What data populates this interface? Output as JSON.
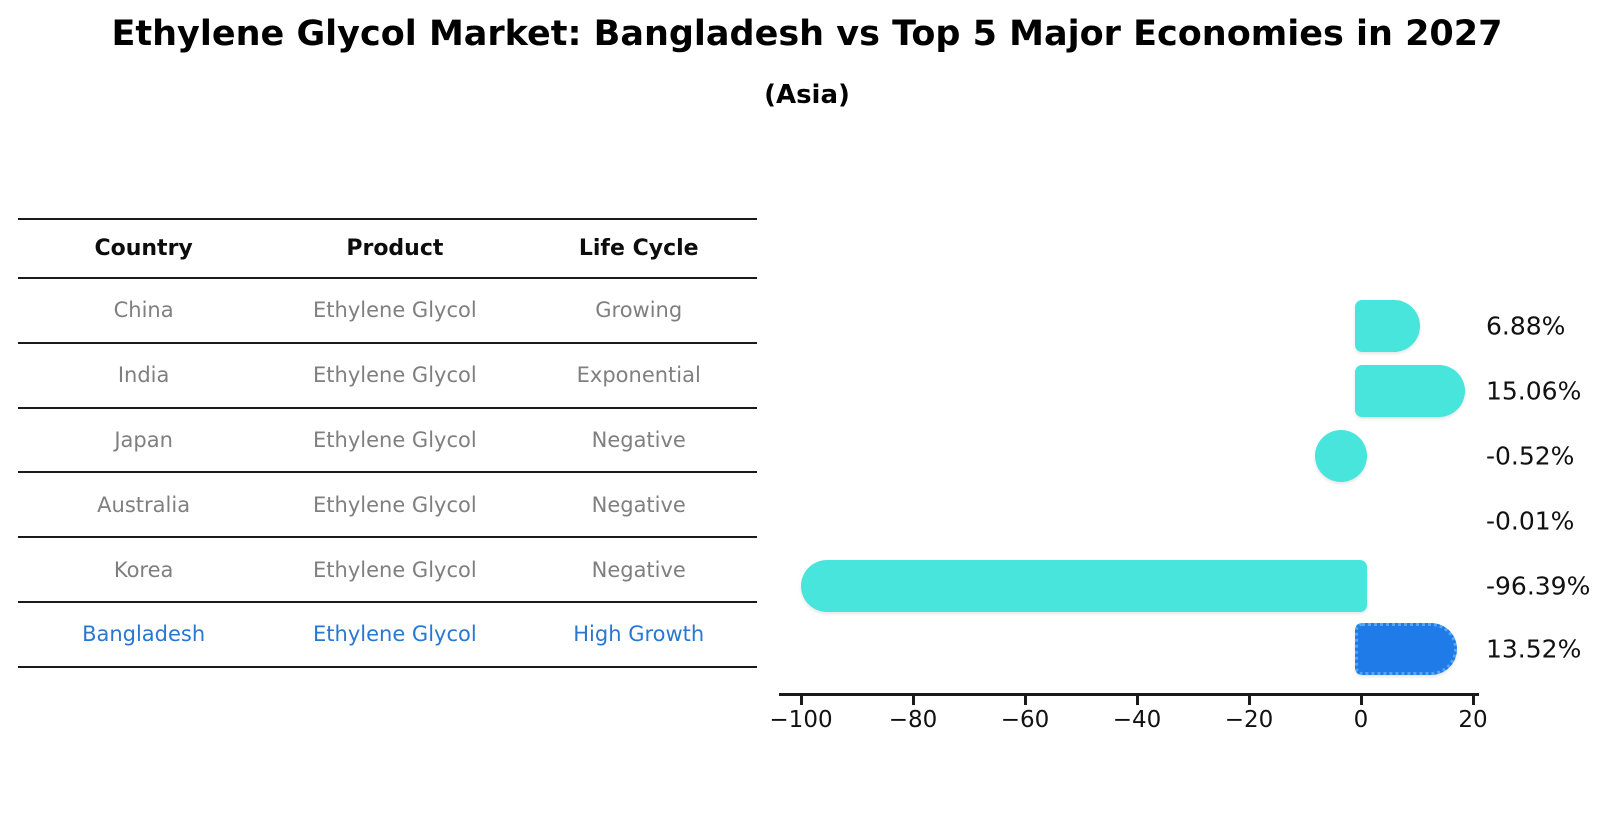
{
  "title": "Ethylene Glycol Market: Bangladesh vs Top 5 Major Economies in 2027",
  "subtitle": "(Asia)",
  "table": {
    "headers": [
      "Country",
      "Product",
      "Life Cycle"
    ],
    "rows": [
      {
        "country": "China",
        "product": "Ethylene Glycol",
        "life_cycle": "Growing",
        "highlight": false
      },
      {
        "country": "India",
        "product": "Ethylene Glycol",
        "life_cycle": "Exponential",
        "highlight": false
      },
      {
        "country": "Japan",
        "product": "Ethylene Glycol",
        "life_cycle": "Negative",
        "highlight": false
      },
      {
        "country": "Australia",
        "product": "Ethylene Glycol",
        "life_cycle": "Negative",
        "highlight": false
      },
      {
        "country": "Korea",
        "product": "Ethylene Glycol",
        "life_cycle": "Negative",
        "highlight": false
      },
      {
        "country": "Bangladesh",
        "product": "Ethylene Glycol",
        "life_cycle": "High Growth",
        "highlight": true
      }
    ]
  },
  "chart_data": {
    "type": "bar",
    "orientation": "horizontal",
    "title": "Ethylene Glycol Market: Bangladesh vs Top 5 Major Economies in 2027",
    "subtitle": "(Asia)",
    "categories": [
      "China",
      "India",
      "Japan",
      "Australia",
      "Korea",
      "Bangladesh"
    ],
    "values": [
      6.88,
      15.06,
      -0.52,
      -0.01,
      -96.39,
      13.52
    ],
    "value_labels": [
      "6.88%",
      "15.06%",
      "-0.52%",
      "-0.01%",
      "-96.39%",
      "13.52%"
    ],
    "unit": "percent CAGR",
    "xlim": [
      -104,
      21
    ],
    "xticks": [
      -100,
      -80,
      -60,
      -40,
      -20,
      0,
      20
    ],
    "xtick_labels": [
      "−100",
      "−80",
      "−60",
      "−40",
      "−20",
      "0",
      "20"
    ],
    "grid": false,
    "legend": null,
    "bar_color": "#48e5dc",
    "highlight_index": 5,
    "highlight_color": "#1e7be8",
    "highlight_border_color": "#55a4f5",
    "highlight_border_style": "dotted"
  },
  "colors": {
    "background": "#ffffff",
    "title_text": "#000000",
    "table_text": "#7f7f7f",
    "table_header_text": "#0d0d0d",
    "highlight_text": "#2878d2",
    "axis": "#1a1a1a"
  }
}
